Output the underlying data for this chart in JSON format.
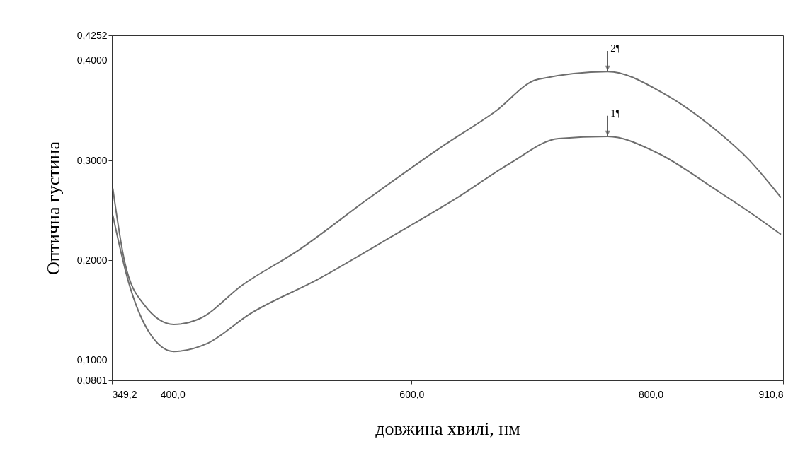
{
  "chart_data": {
    "type": "line",
    "xlabel": "довжина хвилі, нм",
    "ylabel": "Оптична густина",
    "xlim": [
      349.2,
      910.8
    ],
    "ylim": [
      0.0801,
      0.4252
    ],
    "xticks": [
      {
        "value": 349.2,
        "label": "349,2"
      },
      {
        "value": 400,
        "label": "400,0"
      },
      {
        "value": 600,
        "label": "600,0"
      },
      {
        "value": 800,
        "label": "800,0"
      },
      {
        "value": 910.8,
        "label": "910,8"
      }
    ],
    "yticks": [
      {
        "value": 0.0801,
        "label": "0,0801"
      },
      {
        "value": 0.1,
        "label": "0,1000"
      },
      {
        "value": 0.2,
        "label": "0,2000"
      },
      {
        "value": 0.3,
        "label": "0,3000"
      },
      {
        "value": 0.4,
        "label": "0,4000"
      },
      {
        "value": 0.4252,
        "label": "0,4252"
      }
    ],
    "grid": false,
    "legend": false,
    "marker": "none",
    "line_style": "solid",
    "series": [
      {
        "color": "#6e6e6e",
        "x": [
          350,
          360,
          376,
          401,
          423,
          458,
          505,
          564,
          623,
          670,
          705,
          764,
          811,
          853,
          882,
          909
        ],
        "values": [
          0.272,
          0.198,
          0.156,
          0.136,
          0.142,
          0.175,
          0.21,
          0.262,
          0.312,
          0.349,
          0.381,
          0.389,
          0.367,
          0.332,
          0.301,
          0.263
        ]
      },
      {
        "color": "#6e6e6e",
        "x": [
          350,
          363,
          381,
          401,
          429,
          464,
          523,
          582,
          641,
          682,
          723,
          764,
          805,
          853,
          888,
          909
        ],
        "values": [
          0.245,
          0.179,
          0.127,
          0.109,
          0.117,
          0.146,
          0.182,
          0.223,
          0.265,
          0.297,
          0.322,
          0.324,
          0.308,
          0.272,
          0.244,
          0.226
        ]
      }
    ],
    "annotations": [
      {
        "text": "2¶",
        "x": 764,
        "y": 0.389
      },
      {
        "text": "1¶",
        "x": 764,
        "y": 0.324
      }
    ]
  }
}
